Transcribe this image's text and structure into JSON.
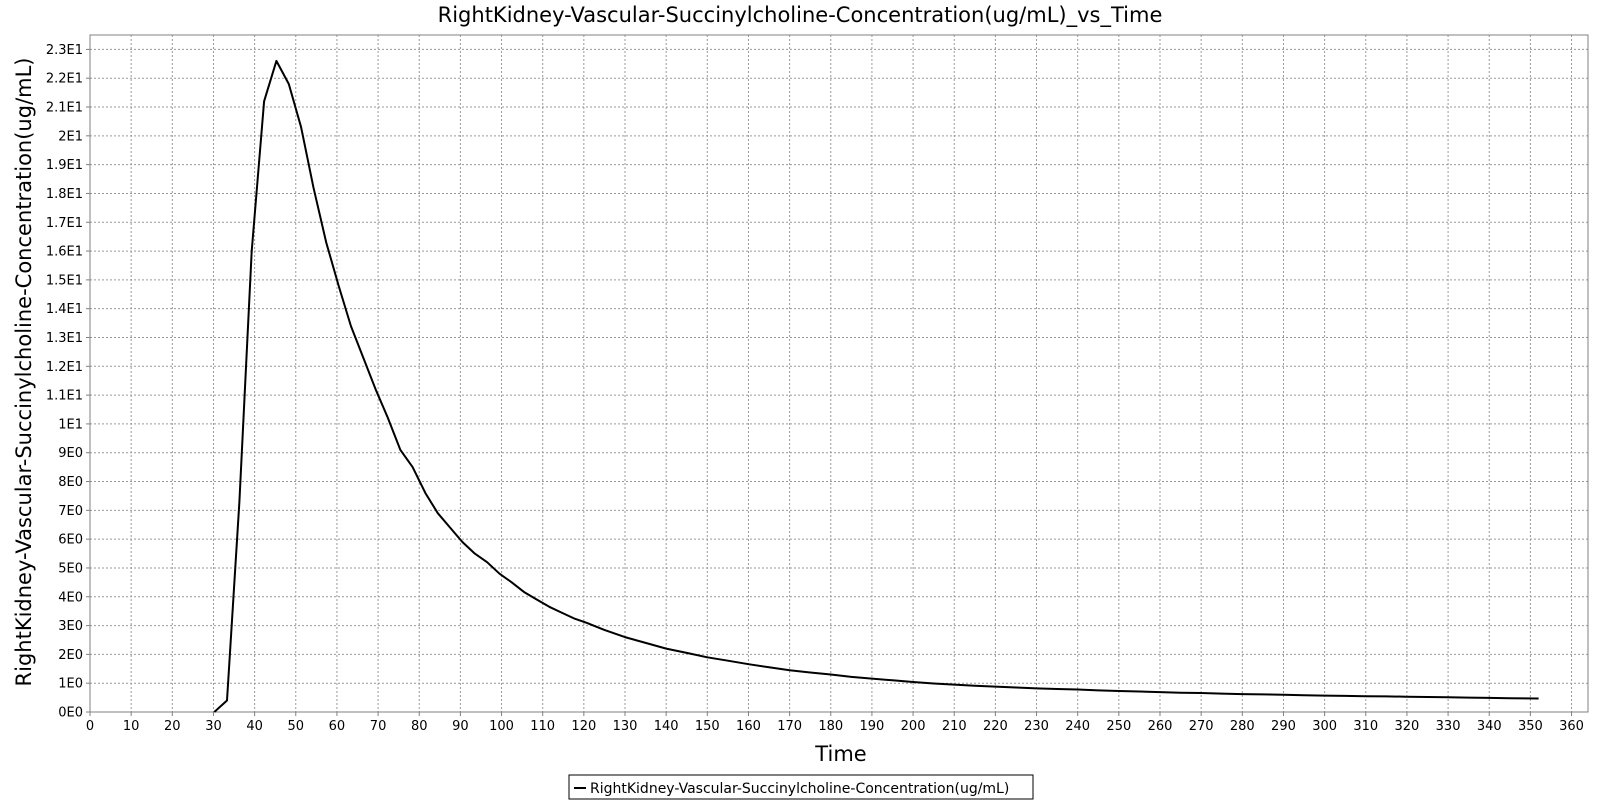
{
  "chart_data": {
    "type": "line",
    "title": "RightKidney-Vascular-Succinylcholine-Concentration(ug/mL)_vs_Time",
    "xlabel": "Time",
    "ylabel": "RightKidney-Vascular-Succinylcholine-Concentration(ug/mL)",
    "xlim": [
      0,
      364
    ],
    "ylim": [
      0,
      23.5
    ],
    "grid": true,
    "legend_position": "bottom-center",
    "x_ticks": [
      0,
      10,
      20,
      30,
      40,
      50,
      60,
      70,
      80,
      90,
      100,
      110,
      120,
      130,
      140,
      150,
      160,
      170,
      180,
      190,
      200,
      210,
      220,
      230,
      240,
      250,
      260,
      270,
      280,
      290,
      300,
      310,
      320,
      330,
      340,
      350,
      360
    ],
    "x_tick_labels": [
      "0",
      "10",
      "20",
      "30",
      "40",
      "50",
      "60",
      "70",
      "80",
      "90",
      "100",
      "110",
      "120",
      "130",
      "140",
      "150",
      "160",
      "170",
      "180",
      "190",
      "200",
      "210",
      "220",
      "230",
      "240",
      "250",
      "260",
      "270",
      "280",
      "290",
      "300",
      "310",
      "320",
      "330",
      "340",
      "350",
      "360"
    ],
    "y_ticks": [
      0,
      1,
      2,
      3,
      4,
      5,
      6,
      7,
      8,
      9,
      10,
      11,
      12,
      13,
      14,
      15,
      16,
      17,
      18,
      19,
      20,
      21,
      22,
      23
    ],
    "y_tick_labels": [
      "0E0",
      "1E0",
      "2E0",
      "3E0",
      "4E0",
      "5E0",
      "6E0",
      "7E0",
      "8E0",
      "9E0",
      "1E1",
      "1.1E1",
      "1.2E1",
      "1.3E1",
      "1.4E1",
      "1.5E1",
      "1.6E1",
      "1.7E1",
      "1.8E1",
      "1.9E1",
      "2E1",
      "2.1E1",
      "2.2E1",
      "2.3E1"
    ],
    "series": [
      {
        "name": "RightKidney-Vascular-Succinylcholine-Concentration(ug/mL)",
        "color": "#000000",
        "x": [
          30.2,
          33.3,
          36.3,
          39.3,
          42.3,
          45.3,
          48.3,
          51.3,
          54.3,
          57.4,
          60.4,
          63.4,
          66.4,
          69.4,
          72.4,
          75.4,
          78.4,
          81.5,
          84.5,
          87.5,
          90.5,
          93.5,
          96.5,
          99.5,
          102.5,
          105.6,
          108.6,
          111.6,
          114.6,
          117.6,
          120.6,
          125,
          130,
          135,
          140,
          145,
          150,
          155,
          160,
          165,
          170,
          175,
          180,
          185,
          190,
          195,
          200,
          205,
          210,
          215,
          220,
          225,
          230,
          235,
          240,
          245,
          250,
          255,
          260,
          265,
          270,
          275,
          280,
          285,
          290,
          295,
          300,
          305,
          310,
          315,
          320,
          325,
          330,
          335,
          340,
          345,
          352
        ],
        "y": [
          0,
          0.4,
          7.3,
          16,
          21.2,
          22.6,
          21.8,
          20.3,
          18.2,
          16.3,
          14.8,
          13.4,
          12.3,
          11.2,
          10.2,
          9.1,
          8.5,
          7.6,
          6.9,
          6.4,
          5.9,
          5.5,
          5.2,
          4.8,
          4.5,
          4.15,
          3.9,
          3.65,
          3.45,
          3.25,
          3.1,
          2.85,
          2.6,
          2.4,
          2.2,
          2.05,
          1.9,
          1.78,
          1.66,
          1.55,
          1.45,
          1.37,
          1.3,
          1.22,
          1.16,
          1.1,
          1.04,
          0.99,
          0.95,
          0.91,
          0.88,
          0.85,
          0.82,
          0.8,
          0.78,
          0.75,
          0.73,
          0.71,
          0.69,
          0.67,
          0.66,
          0.64,
          0.62,
          0.61,
          0.6,
          0.58,
          0.57,
          0.56,
          0.55,
          0.54,
          0.53,
          0.52,
          0.51,
          0.5,
          0.49,
          0.48,
          0.47
        ]
      }
    ]
  }
}
